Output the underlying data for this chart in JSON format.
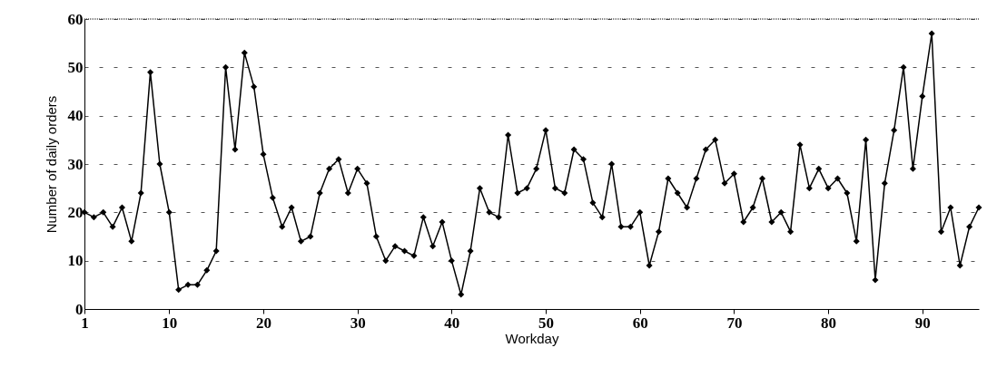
{
  "chart_data": {
    "type": "line",
    "xlabel": "Workday",
    "ylabel": "Number of daily orders",
    "x": [
      1,
      2,
      3,
      4,
      5,
      6,
      7,
      8,
      9,
      10,
      11,
      12,
      13,
      14,
      15,
      16,
      17,
      18,
      19,
      20,
      21,
      22,
      23,
      24,
      25,
      26,
      27,
      28,
      29,
      30,
      31,
      32,
      33,
      34,
      35,
      36,
      37,
      38,
      39,
      40,
      41,
      42,
      43,
      44,
      45,
      46,
      47,
      48,
      49,
      50,
      51,
      52,
      53,
      54,
      55,
      56,
      57,
      58,
      59,
      60,
      61,
      62,
      63,
      64,
      65,
      66,
      67,
      68,
      69,
      70,
      71,
      72,
      73,
      74,
      75,
      76,
      77,
      78,
      79,
      80,
      81,
      82,
      83,
      84,
      85,
      86,
      87,
      88,
      89,
      90,
      91,
      92,
      93,
      94,
      95,
      96
    ],
    "series": [
      {
        "color": "#000000",
        "values": [
          20,
          19,
          20,
          17,
          21,
          14,
          24,
          49,
          30,
          20,
          4,
          5,
          5,
          8,
          12,
          50,
          33,
          53,
          46,
          32,
          23,
          17,
          21,
          14,
          15,
          24,
          29,
          31,
          24,
          29,
          26,
          15,
          10,
          13,
          12,
          11,
          19,
          13,
          18,
          10,
          3,
          12,
          25,
          20,
          19,
          36,
          24,
          25,
          29,
          37,
          25,
          24,
          33,
          31,
          22,
          19,
          30,
          17,
          17,
          20,
          9,
          16,
          27,
          24,
          21,
          27,
          33,
          35,
          26,
          28,
          18,
          21,
          27,
          18,
          20,
          16,
          34,
          25,
          29,
          25,
          27,
          24,
          14,
          35,
          6,
          26,
          37,
          50,
          29,
          44,
          57,
          16,
          21,
          9,
          17,
          21
        ]
      }
    ],
    "xlim": [
      1,
      96
    ],
    "xticks": [
      1,
      10,
      20,
      30,
      40,
      50,
      60,
      70,
      80,
      90
    ],
    "ylim": [
      0,
      60
    ],
    "yticks": [
      0,
      10,
      20,
      30,
      40,
      50,
      60
    ],
    "grid": "y",
    "marker": "diamond",
    "line_style": "solid"
  }
}
